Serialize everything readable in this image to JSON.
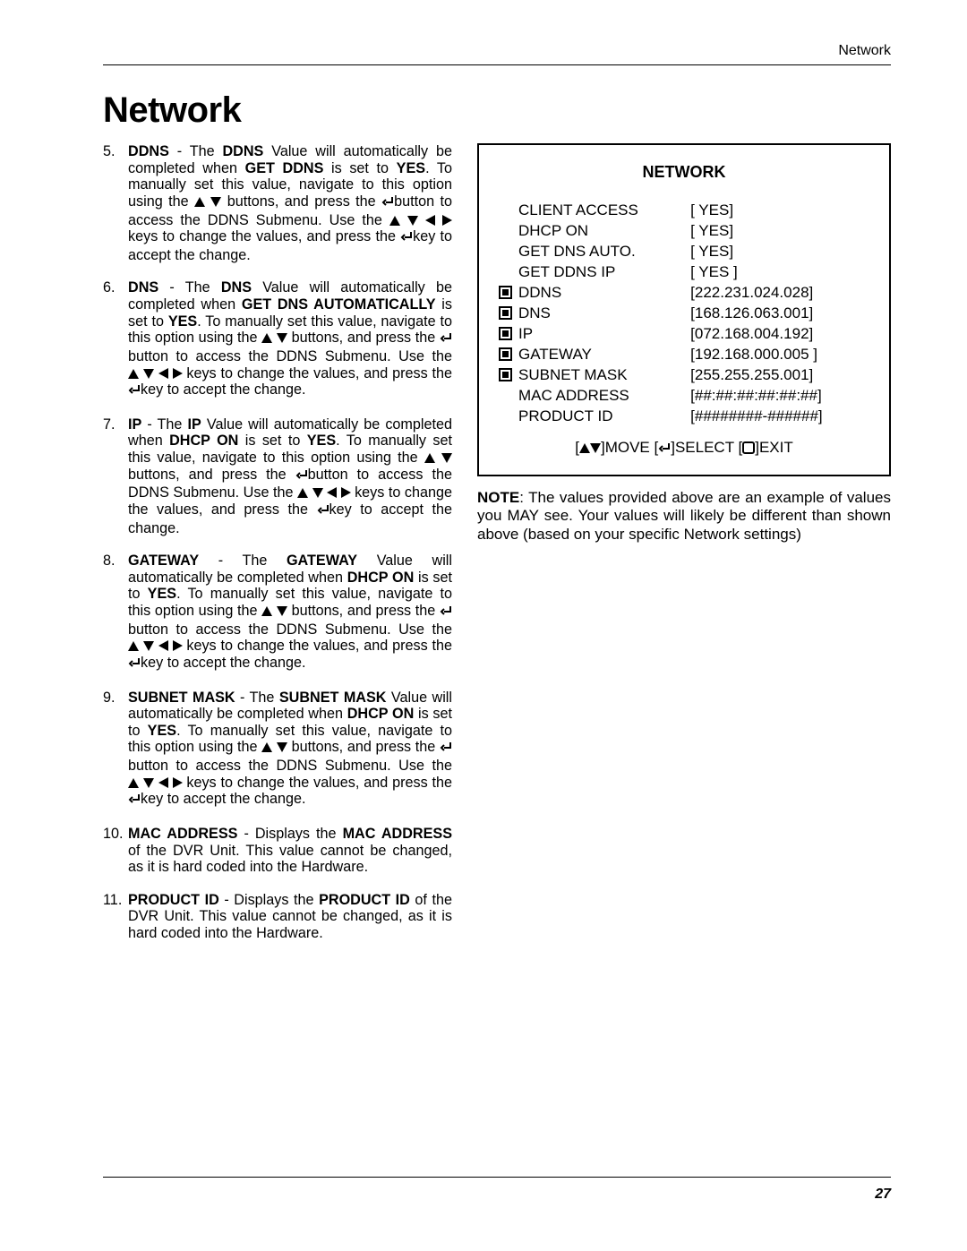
{
  "header_label": "Network",
  "title": "Network",
  "page_number": "27",
  "steps": [
    {
      "label": "DDNS",
      "label2": "DDNS",
      "cond_label": "GET DDNS",
      "cond_val": "YES",
      "t1": " - The ",
      "t2": " Value will automatically be completed when ",
      "t3": " is set to ",
      "t4": ". To manually set this value, navigate to this option using the ",
      "t5": " buttons, and press the ",
      "t6": "button to access the DDNS Submenu. Use the ",
      "t7": " keys to change the values, and press the ",
      "t8": "key to accept the change."
    },
    {
      "label": "DNS",
      "label2": "DNS",
      "cond_label": "GET DNS AUTOMATICALLY",
      "cond_val": "YES",
      "t1": " - The ",
      "t2": " Value will automatically be completed when ",
      "t3": " is set to ",
      "t4": ". To manually set this value, navigate to this option using the ",
      "t5": " buttons, and press the ",
      "t6": "button to access the DDNS Submenu. Use the ",
      "t7": " keys to change the values, and press the ",
      "t8": "key to accept the change."
    },
    {
      "label": "IP",
      "label2": "IP",
      "cond_label": "DHCP ON",
      "cond_val": "YES",
      "t1": " - The ",
      "t2": " Value will automatically be completed when ",
      "t3": " is set to ",
      "t4": ". To manually set this value, navigate to this option using the ",
      "t5": " buttons, and press the ",
      "t6": "button to access the DDNS Submenu. Use the ",
      "t7": " keys to change the values, and press the ",
      "t8": "key to accept the change."
    },
    {
      "label": "GATEWAY",
      "label2": "GATEWAY",
      "cond_label": "DHCP ON",
      "cond_val": "YES",
      "t1": " - The ",
      "t2": " Value will automatically be completed when ",
      "t3": " is set to ",
      "t4": ". To manually set this value, navigate to this option using the ",
      "t5": " buttons, and press the ",
      "t6": "button to access the DDNS Submenu. Use the ",
      "t7": " keys to change the values, and press the ",
      "t8": "key to accept the change."
    },
    {
      "label": "SUBNET MASK",
      "label2": "SUBNET MASK",
      "cond_label": "DHCP ON",
      "cond_val": "YES",
      "t1": " - The ",
      "t2": " Value will automatically be completed when ",
      "t3": " is set to ",
      "t4": ". To manually set this value, navigate to this option using the ",
      "t5": " buttons, and press the ",
      "t6": "button to access the DDNS Submenu. Use the ",
      "t7": " keys to change the values, and press the ",
      "t8": "key to accept the change."
    }
  ],
  "step_mac": {
    "label": "MAC ADDRESS",
    "t1": " - Displays the ",
    "label2": "MAC ADDRESS",
    "t2": " of the DVR Unit. This value cannot be changed, as it is hard coded into the Hardware."
  },
  "step_pid": {
    "label": "PRODUCT ID",
    "t1": " - Displays the ",
    "label2": "PRODUCT ID",
    "t2": " of the DVR Unit. This value cannot be changed, as it is hard coded into the Hardware."
  },
  "menu": {
    "title": "NETWORK",
    "rows": [
      {
        "icon": false,
        "label": "CLIENT ACCESS",
        "value": "[ YES]"
      },
      {
        "icon": false,
        "label": "DHCP ON",
        "value": "[ YES]"
      },
      {
        "icon": false,
        "label": "GET DNS AUTO.",
        "value": "[ YES]"
      },
      {
        "icon": false,
        "label": "GET DDNS IP",
        "value": "[ YES ]"
      },
      {
        "icon": true,
        "label": "DDNS",
        "value": "[222.231.024.028]"
      },
      {
        "icon": true,
        "label": "DNS",
        "value": "[168.126.063.001]"
      },
      {
        "icon": true,
        "label": "IP",
        "value": "[072.168.004.192]"
      },
      {
        "icon": true,
        "label": "GATEWAY",
        "value": "[192.168.000.005 ]"
      },
      {
        "icon": true,
        "label": "SUBNET MASK",
        "value": "[255.255.255.001]"
      },
      {
        "icon": false,
        "label": "MAC ADDRESS",
        "value": "[##:##:##:##:##:##]"
      },
      {
        "icon": false,
        "label": "PRODUCT ID",
        "value": "[########-######]"
      }
    ],
    "footer_move": "]MOVE [",
    "footer_select": "]SELECT [",
    "footer_exit": "]EXIT"
  },
  "note": {
    "prefix": "NOTE",
    "body": ": The values provided above are an example of values you MAY see. Your values will likely be different than shown above (based on your specific Network settings)"
  }
}
